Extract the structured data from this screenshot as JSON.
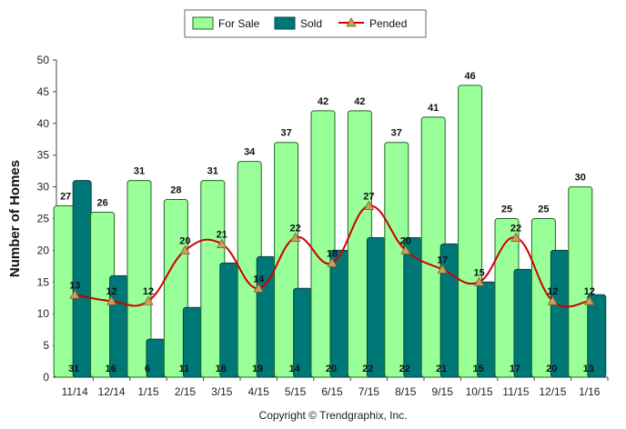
{
  "chart_data": {
    "type": "bar",
    "categories": [
      "11/14",
      "12/14",
      "1/15",
      "2/15",
      "3/15",
      "4/15",
      "5/15",
      "6/15",
      "7/15",
      "8/15",
      "9/15",
      "10/15",
      "11/15",
      "12/15",
      "1/16"
    ],
    "series": [
      {
        "name": "For Sale",
        "type": "bar",
        "color": "#99ff99",
        "values": [
          27,
          26,
          31,
          28,
          31,
          34,
          37,
          42,
          42,
          37,
          41,
          46,
          25,
          25,
          30
        ]
      },
      {
        "name": "Sold",
        "type": "bar",
        "color": "#007777",
        "values": [
          31,
          16,
          6,
          11,
          18,
          19,
          14,
          20,
          22,
          22,
          21,
          15,
          17,
          20,
          13
        ]
      },
      {
        "name": "Pended",
        "type": "line",
        "color": "#cc0000",
        "marker_color": "#c8a060",
        "values": [
          13,
          12,
          12,
          20,
          21,
          14,
          22,
          18,
          27,
          20,
          17,
          15,
          22,
          12,
          12
        ]
      }
    ],
    "ylabel": "Number of Homes",
    "ylim": [
      0,
      50
    ],
    "yticks": [
      0,
      5,
      10,
      15,
      20,
      25,
      30,
      35,
      40,
      45,
      50
    ],
    "legend_position": "top-center",
    "grid": false
  },
  "footer": "Copyright © Trendgraphix, Inc."
}
